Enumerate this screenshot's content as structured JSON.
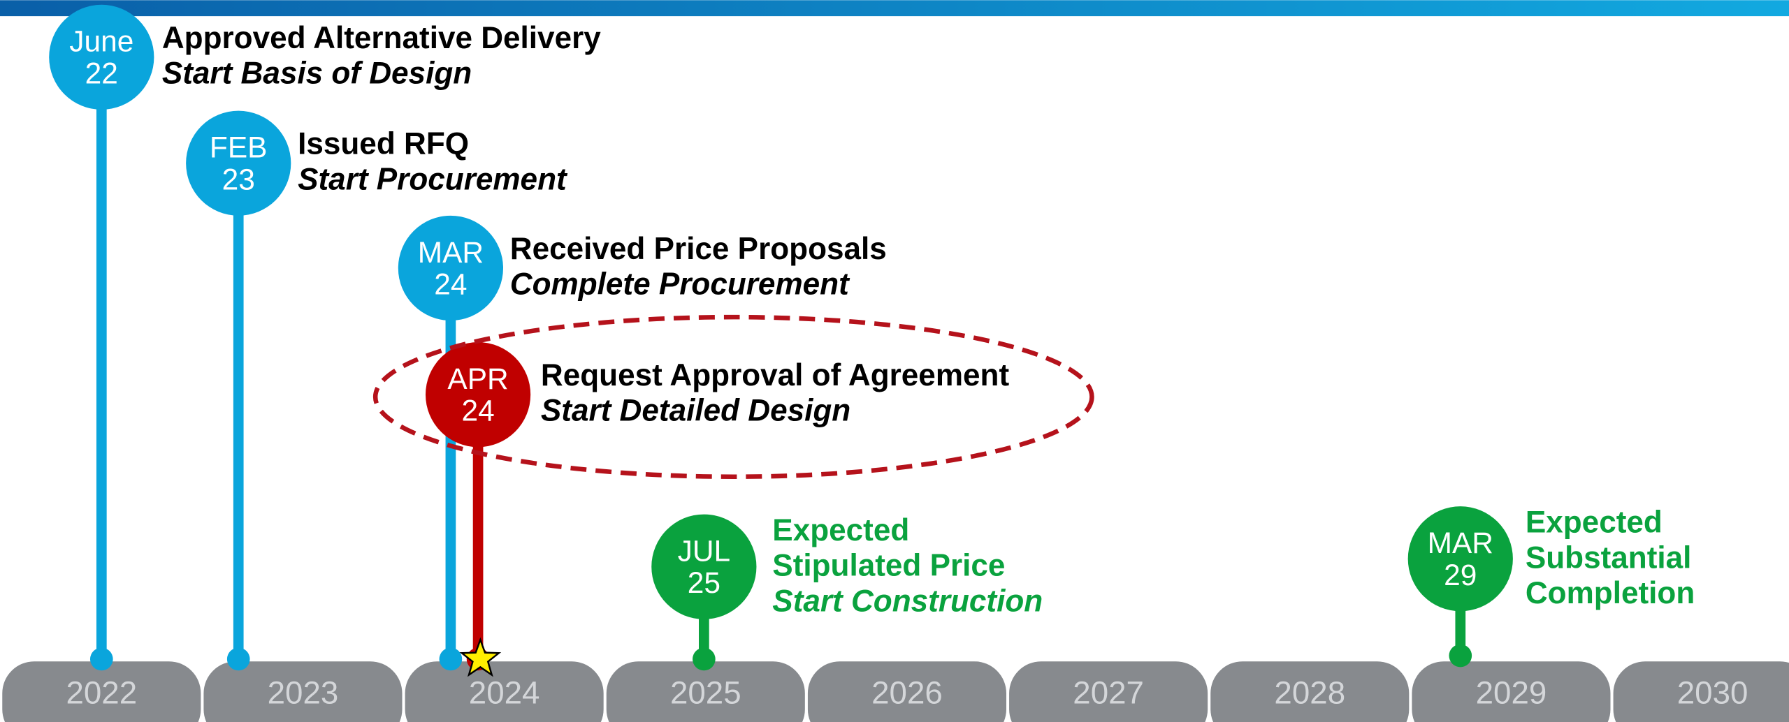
{
  "years": [
    "2022",
    "2023",
    "2024",
    "2025",
    "2026",
    "2027",
    "2028",
    "2029",
    "2030"
  ],
  "milestones": [
    {
      "month": "June",
      "year": "22",
      "color": "#0aa5dc",
      "title_lines": [
        "Approved Alternative Delivery"
      ],
      "subtitle_lines": [
        "Start Basis of Design"
      ]
    },
    {
      "month": "FEB",
      "year": "23",
      "color": "#0aa5dc",
      "title_lines": [
        "Issued RFQ"
      ],
      "subtitle_lines": [
        "Start Procurement"
      ]
    },
    {
      "month": "MAR",
      "year": "24",
      "color": "#0aa5dc",
      "title_lines": [
        "Received Price Proposals"
      ],
      "subtitle_lines": [
        "Complete Procurement"
      ]
    },
    {
      "month": "APR",
      "year": "24",
      "color": "#c00000",
      "title_lines": [
        "Request Approval of Agreement"
      ],
      "subtitle_lines": [
        "Start Detailed Design"
      ]
    },
    {
      "month": "JUL",
      "year": "25",
      "color": "#0aa23e",
      "title_lines": [
        "Expected",
        "Stipulated Price"
      ],
      "subtitle_lines": [
        "Start Construction"
      ]
    },
    {
      "month": "MAR",
      "year": "29",
      "color": "#0aa23e",
      "title_lines": [
        "Expected",
        "Substantial",
        "Completion"
      ],
      "subtitle_lines": []
    }
  ]
}
